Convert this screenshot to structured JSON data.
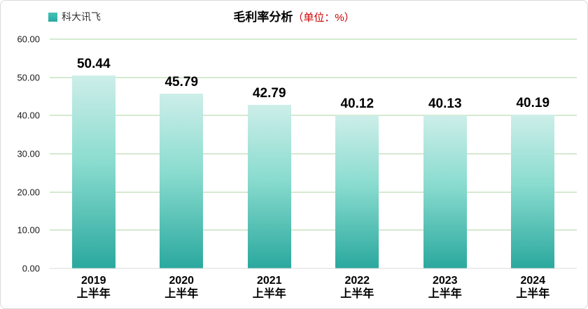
{
  "title": {
    "main": "毛利率分析",
    "unit": "（单位：%）"
  },
  "legend": {
    "label": "科大讯飞"
  },
  "colors": {
    "bar_top": "#cdeee9",
    "bar_bottom": "#2aa89e",
    "legend_swatch": "#33b4aa",
    "gridline": "#aad5a2",
    "baseline": "#d9d9d9",
    "unit_text": "#cc0000",
    "card_border": "#d9d9d9"
  },
  "chart_data": {
    "type": "bar",
    "title": "毛利率分析（单位：%）",
    "categories": [
      [
        "2019",
        "上半年"
      ],
      [
        "2020",
        "上半年"
      ],
      [
        "2021",
        "上半年"
      ],
      [
        "2022",
        "上半年"
      ],
      [
        "2023",
        "上半年"
      ],
      [
        "2024",
        "上半年"
      ]
    ],
    "series": [
      {
        "name": "科大讯飞",
        "values": [
          50.44,
          45.79,
          42.79,
          40.12,
          40.13,
          40.19
        ],
        "labels": [
          "50.44",
          "45.79",
          "42.79",
          "40.12",
          "40.13",
          "40.19"
        ]
      }
    ],
    "ylim": [
      0,
      60
    ],
    "ytick_step": 10,
    "ytick_labels": [
      "0.00",
      "10.00",
      "20.00",
      "30.00",
      "40.00",
      "50.00",
      "60.00"
    ],
    "grid": "horizontal",
    "legend_position": "top-left",
    "value_labels": "above-bars"
  }
}
